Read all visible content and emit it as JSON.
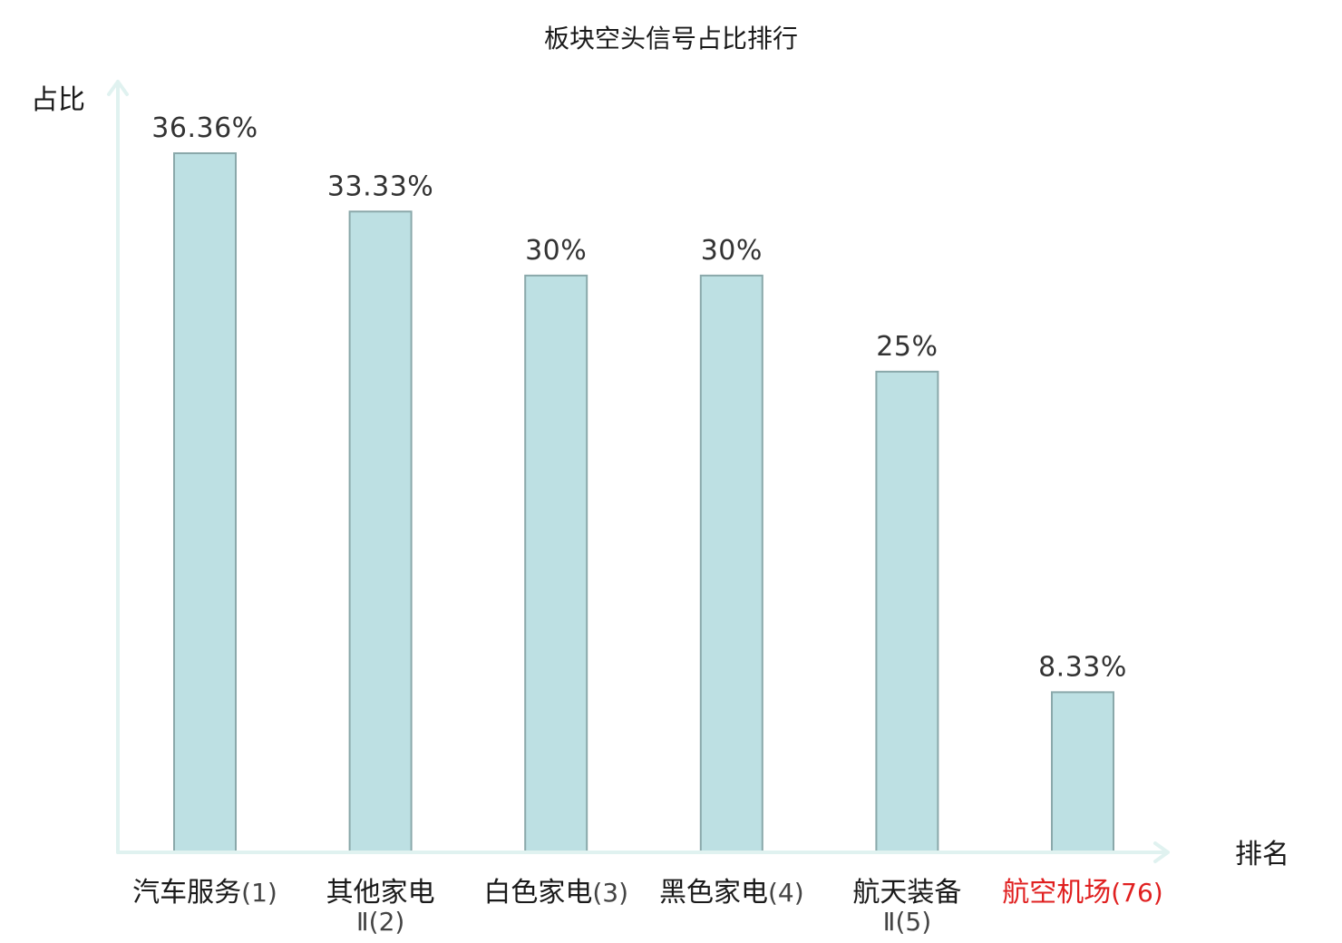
{
  "chart_data": {
    "type": "bar",
    "title": "板块空头信号占比排行",
    "ylabel": "占比",
    "xlabel": "排名",
    "ylim": [
      0,
      40
    ],
    "categories": [
      {
        "name": "汽车服务",
        "rank": "(1)",
        "value": 36.36,
        "label": "36.36%",
        "highlight": false
      },
      {
        "name": "其他家电",
        "name_line2": "Ⅱ",
        "rank": "(2)",
        "value": 33.33,
        "label": "33.33%",
        "highlight": false
      },
      {
        "name": "白色家电",
        "rank": "(3)",
        "value": 30,
        "label": "30%",
        "highlight": false
      },
      {
        "name": "黑色家电",
        "rank": "(4)",
        "value": 30,
        "label": "30%",
        "highlight": false
      },
      {
        "name": "航天装备",
        "name_line2": "Ⅱ",
        "rank": "(5)",
        "value": 25,
        "label": "25%",
        "highlight": false
      },
      {
        "name": "航空机场",
        "rank": "(76)",
        "value": 8.33,
        "label": "8.33%",
        "highlight": true
      }
    ],
    "colors": {
      "bar_fill": "#bde0e3",
      "bar_stroke": "#8aa8aa",
      "axis": "#e0f2f0",
      "text": "#1a1a1a",
      "rank_text": "#444444",
      "highlight": "#e02020"
    },
    "grid": false,
    "legend": "none"
  }
}
